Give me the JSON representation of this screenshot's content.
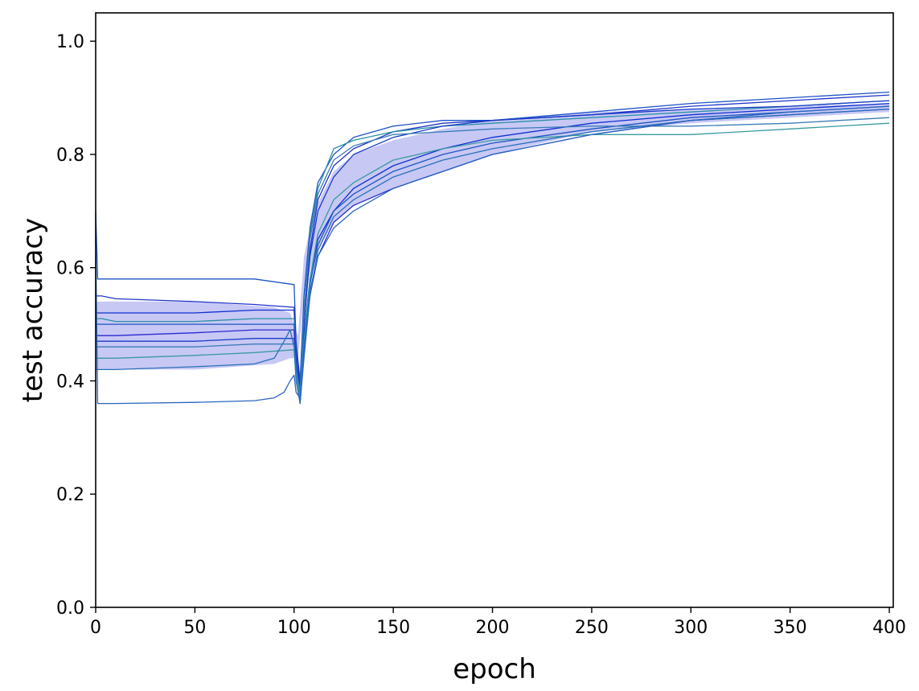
{
  "chart_data": {
    "type": "line",
    "title": "",
    "xlabel": "epoch",
    "ylabel": "test accuracy",
    "xlim": [
      0,
      402
    ],
    "ylim": [
      0,
      1.05
    ],
    "xticks": [
      0,
      50,
      100,
      150,
      200,
      250,
      300,
      350,
      400
    ],
    "xtick_labels": [
      "0",
      "50",
      "100",
      "150",
      "200",
      "250",
      "300",
      "350",
      "400"
    ],
    "yticks": [
      0.0,
      0.2,
      0.4,
      0.6,
      0.8,
      1.0
    ],
    "ytick_labels": [
      "0.0",
      "0.2",
      "0.4",
      "0.6",
      "0.8",
      "1.0"
    ],
    "grid": false,
    "legend": "none",
    "band": {
      "color": "#c8c8f5",
      "x": [
        0,
        5,
        50,
        90,
        98,
        102,
        105,
        110,
        120,
        130,
        150,
        175,
        200,
        250,
        300,
        350,
        400
      ],
      "lower": [
        0.42,
        0.42,
        0.42,
        0.43,
        0.44,
        0.44,
        0.55,
        0.62,
        0.68,
        0.71,
        0.74,
        0.77,
        0.8,
        0.84,
        0.855,
        0.865,
        0.875
      ],
      "upper": [
        0.54,
        0.54,
        0.54,
        0.53,
        0.52,
        0.48,
        0.62,
        0.7,
        0.77,
        0.8,
        0.825,
        0.845,
        0.86,
        0.875,
        0.88,
        0.885,
        0.89
      ]
    },
    "series": [
      {
        "color": "#1f54c8",
        "x": [
          0,
          1,
          3,
          10,
          50,
          80,
          100,
          101,
          103,
          105,
          108,
          112,
          120,
          130,
          150,
          175,
          200,
          250,
          300,
          350,
          400
        ],
        "values": [
          0.7,
          0.58,
          0.58,
          0.58,
          0.58,
          0.58,
          0.57,
          0.47,
          0.4,
          0.55,
          0.67,
          0.75,
          0.8,
          0.83,
          0.85,
          0.86,
          0.86,
          0.875,
          0.89,
          0.9,
          0.91
        ]
      },
      {
        "color": "#2035c8",
        "x": [
          0,
          3,
          10,
          50,
          80,
          100,
          101,
          103,
          105,
          108,
          112,
          120,
          130,
          150,
          175,
          200,
          250,
          300,
          350,
          400
        ],
        "values": [
          0.55,
          0.55,
          0.545,
          0.54,
          0.535,
          0.53,
          0.46,
          0.39,
          0.5,
          0.63,
          0.72,
          0.78,
          0.81,
          0.84,
          0.855,
          0.86,
          0.87,
          0.885,
          0.895,
          0.905
        ]
      },
      {
        "color": "#1030d0",
        "x": [
          0,
          3,
          10,
          50,
          80,
          100,
          101,
          103,
          105,
          108,
          112,
          120,
          130,
          150,
          175,
          200,
          250,
          300,
          350,
          400
        ],
        "values": [
          0.52,
          0.52,
          0.52,
          0.52,
          0.525,
          0.525,
          0.45,
          0.38,
          0.48,
          0.58,
          0.65,
          0.7,
          0.74,
          0.78,
          0.81,
          0.83,
          0.855,
          0.87,
          0.88,
          0.89
        ]
      },
      {
        "color": "#2a8fa8",
        "x": [
          0,
          3,
          10,
          50,
          80,
          100,
          101,
          103,
          105,
          108,
          112,
          120,
          130,
          150,
          175,
          200,
          250,
          300,
          350,
          400
        ],
        "values": [
          0.51,
          0.51,
          0.505,
          0.505,
          0.51,
          0.51,
          0.44,
          0.37,
          0.52,
          0.66,
          0.74,
          0.81,
          0.825,
          0.84,
          0.85,
          0.855,
          0.865,
          0.875,
          0.885,
          0.895
        ]
      },
      {
        "color": "#1d55c0",
        "x": [
          0,
          3,
          10,
          50,
          80,
          100,
          101,
          103,
          105,
          108,
          112,
          120,
          130,
          150,
          175,
          200,
          250,
          300,
          350,
          400
        ],
        "values": [
          0.5,
          0.5,
          0.5,
          0.5,
          0.5,
          0.5,
          0.43,
          0.38,
          0.46,
          0.57,
          0.64,
          0.7,
          0.73,
          0.77,
          0.8,
          0.82,
          0.845,
          0.865,
          0.875,
          0.885
        ]
      },
      {
        "color": "#2a2ad0",
        "x": [
          0,
          3,
          10,
          50,
          80,
          100,
          101,
          103,
          105,
          108,
          112,
          120,
          130,
          150,
          175,
          200,
          250,
          300,
          350,
          400
        ],
        "values": [
          0.48,
          0.48,
          0.48,
          0.485,
          0.49,
          0.49,
          0.43,
          0.36,
          0.45,
          0.55,
          0.62,
          0.68,
          0.71,
          0.74,
          0.77,
          0.8,
          0.835,
          0.86,
          0.87,
          0.88
        ]
      },
      {
        "color": "#1a3cc8",
        "x": [
          0,
          3,
          10,
          50,
          80,
          100,
          101,
          103,
          105,
          108,
          112,
          120,
          130,
          150,
          175,
          200,
          250,
          300,
          350,
          400
        ],
        "values": [
          0.47,
          0.47,
          0.47,
          0.47,
          0.475,
          0.475,
          0.43,
          0.37,
          0.5,
          0.62,
          0.7,
          0.76,
          0.8,
          0.83,
          0.85,
          0.86,
          0.87,
          0.88,
          0.885,
          0.895
        ]
      },
      {
        "color": "#3a7cb8",
        "x": [
          0,
          3,
          10,
          50,
          80,
          100,
          101,
          103,
          105,
          108,
          112,
          120,
          130,
          150,
          175,
          200,
          250,
          300,
          350,
          400
        ],
        "values": [
          0.46,
          0.46,
          0.46,
          0.46,
          0.465,
          0.465,
          0.42,
          0.38,
          0.52,
          0.65,
          0.73,
          0.79,
          0.815,
          0.835,
          0.84,
          0.845,
          0.85,
          0.85,
          0.855,
          0.865
        ]
      },
      {
        "color": "#3a9aa0",
        "x": [
          0,
          3,
          10,
          50,
          80,
          100,
          101,
          103,
          105,
          108,
          112,
          120,
          130,
          150,
          175,
          200,
          250,
          300,
          350,
          400
        ],
        "values": [
          0.44,
          0.44,
          0.44,
          0.445,
          0.45,
          0.455,
          0.41,
          0.37,
          0.47,
          0.58,
          0.66,
          0.72,
          0.75,
          0.79,
          0.81,
          0.825,
          0.835,
          0.835,
          0.845,
          0.855
        ]
      },
      {
        "color": "#2a70b8",
        "x": [
          0,
          3,
          10,
          50,
          80,
          90,
          95,
          98,
          100,
          101,
          103,
          105,
          108,
          112,
          120,
          130,
          150,
          175,
          200,
          250,
          300,
          350,
          400
        ],
        "values": [
          0.42,
          0.42,
          0.42,
          0.425,
          0.43,
          0.44,
          0.47,
          0.49,
          0.46,
          0.4,
          0.36,
          0.44,
          0.55,
          0.63,
          0.69,
          0.72,
          0.76,
          0.79,
          0.81,
          0.84,
          0.86,
          0.87,
          0.88
        ]
      },
      {
        "color": "#2a66c0",
        "x": [
          0,
          1,
          3,
          10,
          50,
          80,
          90,
          95,
          98,
          100,
          101,
          103,
          105,
          108,
          112,
          120,
          130,
          150,
          175,
          200,
          250,
          300,
          350,
          400
        ],
        "values": [
          0.65,
          0.36,
          0.36,
          0.36,
          0.362,
          0.365,
          0.37,
          0.38,
          0.4,
          0.41,
          0.38,
          0.37,
          0.46,
          0.56,
          0.62,
          0.67,
          0.7,
          0.74,
          0.77,
          0.8,
          0.835,
          0.86,
          0.875,
          0.885
        ]
      }
    ]
  }
}
